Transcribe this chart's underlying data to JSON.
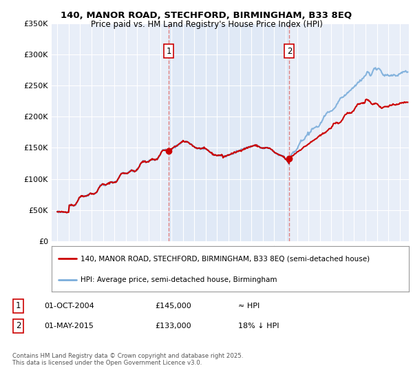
{
  "title_line1": "140, MANOR ROAD, STECHFORD, BIRMINGHAM, B33 8EQ",
  "title_line2": "Price paid vs. HM Land Registry's House Price Index (HPI)",
  "background_color": "#ffffff",
  "plot_bg_color": "#e8eef8",
  "shaded_bg_color": "#dce6f5",
  "grid_color": "#ffffff",
  "sale1_date": 2004.75,
  "sale1_price": 145000,
  "sale2_date": 2015.33,
  "sale2_price": 133000,
  "legend_line1": "140, MANOR ROAD, STECHFORD, BIRMINGHAM, B33 8EQ (semi-detached house)",
  "legend_line2": "HPI: Average price, semi-detached house, Birmingham",
  "table_row1": [
    "1",
    "01-OCT-2004",
    "£145,000",
    "≈ HPI"
  ],
  "table_row2": [
    "2",
    "01-MAY-2015",
    "£133,000",
    "18% ↓ HPI"
  ],
  "footer": "Contains HM Land Registry data © Crown copyright and database right 2025.\nThis data is licensed under the Open Government Licence v3.0.",
  "ylim": [
    0,
    350000
  ],
  "xlim_start": 1994.5,
  "xlim_end": 2025.8,
  "line_color_price": "#cc0000",
  "line_color_hpi": "#7aaddb",
  "vline_color": "#cc0000",
  "dline_color": "#e08080",
  "label_box_color": "#cc0000"
}
